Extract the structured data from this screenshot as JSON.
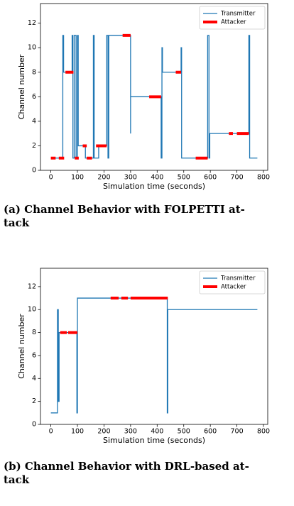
{
  "chart_data": [
    {
      "type": "line",
      "caption": [
        "(a) Channel Behavior with FOLPETTI at-",
        "tack"
      ],
      "xlabel": "Simulation time (seconds)",
      "ylabel": "Channel number",
      "xlim": [
        -39,
        816
      ],
      "ylim": [
        0,
        13.6
      ],
      "xticks": [
        0,
        100,
        200,
        300,
        400,
        500,
        600,
        700,
        800
      ],
      "yticks": [
        0,
        2,
        4,
        6,
        8,
        10,
        12
      ],
      "legend": "upper right",
      "series": [
        {
          "name": "Transmitter",
          "color": "#1f77b4",
          "linewidth": 1.3,
          "x": [
            0,
            45,
            45,
            48,
            48,
            80,
            80,
            83,
            83,
            88,
            88,
            95,
            95,
            100,
            100,
            103,
            103,
            130,
            130,
            160,
            160,
            163,
            163,
            180,
            180,
            210,
            210,
            215,
            215,
            218,
            218,
            300,
            300,
            300,
            415,
            415,
            418,
            418,
            420,
            420,
            490,
            490,
            492,
            492,
            590,
            590,
            595,
            595,
            598,
            598,
            745,
            745,
            748,
            748,
            777
          ],
          "values": [
            1,
            1,
            11,
            11,
            8,
            8,
            11,
            11,
            1,
            1,
            11,
            11,
            1,
            1,
            11,
            11,
            2,
            2,
            1,
            1,
            11,
            11,
            1,
            1,
            2,
            2,
            11,
            11,
            1,
            1,
            11,
            11,
            3,
            6,
            6,
            1,
            1,
            10,
            10,
            8,
            8,
            10,
            10,
            1,
            1,
            11,
            11,
            1,
            1,
            3,
            3,
            11,
            11,
            1,
            1
          ]
        },
        {
          "name": "Attacker",
          "color": "#ff0000",
          "linewidth": 4,
          "x": [
            0,
            18,
            null,
            30,
            50,
            null,
            55,
            85,
            null,
            90,
            105,
            null,
            120,
            135,
            null,
            135,
            155,
            null,
            170,
            210,
            null,
            270,
            300,
            null,
            370,
            415,
            null,
            470,
            490,
            null,
            545,
            590,
            null,
            670,
            685,
            null,
            700,
            745
          ],
          "values": [
            1,
            1,
            null,
            1,
            1,
            null,
            8,
            8,
            null,
            1,
            1,
            null,
            2,
            2,
            null,
            1,
            1,
            null,
            2,
            2,
            null,
            11,
            11,
            null,
            6,
            6,
            null,
            8,
            8,
            null,
            1,
            1,
            null,
            3,
            3,
            null,
            3,
            3
          ]
        }
      ]
    },
    {
      "type": "line",
      "caption": [
        "(b) Channel Behavior with DRL-based at-",
        "tack"
      ],
      "xlabel": "Simulation time (seconds)",
      "ylabel": "Channel number",
      "xlim": [
        -39,
        816
      ],
      "ylim": [
        0,
        13.6
      ],
      "xticks": [
        0,
        100,
        200,
        300,
        400,
        500,
        600,
        700,
        800
      ],
      "yticks": [
        0,
        2,
        4,
        6,
        8,
        10,
        12
      ],
      "legend": "upper right",
      "series": [
        {
          "name": "Transmitter",
          "color": "#1f77b4",
          "linewidth": 1.3,
          "x": [
            0,
            25,
            25,
            28,
            28,
            31,
            31,
            98,
            98,
            100,
            100,
            438,
            438,
            440,
            440,
            777
          ],
          "values": [
            1,
            1,
            10,
            10,
            2,
            2,
            8,
            8,
            1,
            1,
            11,
            11,
            1,
            1,
            10,
            10
          ]
        },
        {
          "name": "Attacker",
          "color": "#ff0000",
          "linewidth": 4,
          "x": [
            35,
            60,
            null,
            65,
            100,
            null,
            225,
            255,
            null,
            265,
            290,
            null,
            300,
            440
          ],
          "values": [
            8,
            8,
            null,
            8,
            8,
            null,
            11,
            11,
            null,
            11,
            11,
            null,
            11,
            11
          ]
        }
      ]
    }
  ]
}
